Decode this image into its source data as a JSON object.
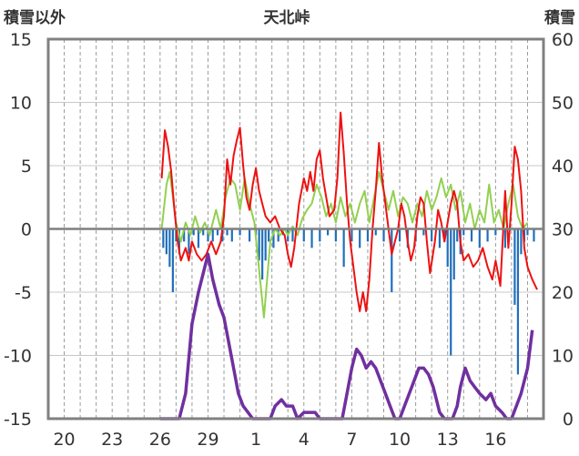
{
  "chart_data": {
    "type": "line",
    "title": "天北峠",
    "ylabel_left": "積雪以外",
    "ylabel_right": "積雪",
    "ylim_left": [
      -15,
      15
    ],
    "ylim_right": [
      0,
      60
    ],
    "yticks_left": [
      "15",
      "10",
      "5",
      "0",
      "-5",
      "-10",
      "-15"
    ],
    "yticks_right": [
      "60",
      "50",
      "40",
      "30",
      "20",
      "10",
      "0"
    ],
    "x_range_days": [
      0,
      31
    ],
    "xticks": [
      {
        "x": 1,
        "label": "20"
      },
      {
        "x": 4,
        "label": "23"
      },
      {
        "x": 7,
        "label": "26"
      },
      {
        "x": 10,
        "label": "29"
      },
      {
        "x": 13,
        "label": "1"
      },
      {
        "x": 16,
        "label": "4"
      },
      {
        "x": 19,
        "label": "7"
      },
      {
        "x": 22,
        "label": "10"
      },
      {
        "x": 25,
        "label": "13"
      },
      {
        "x": 28,
        "label": "16"
      }
    ],
    "series_colors": {
      "red": "#ee1111",
      "green": "#92d050",
      "blue": "#1f6fba",
      "purple": "#7030a0"
    },
    "red_series": [
      [
        7.1,
        4.0
      ],
      [
        7.3,
        7.8
      ],
      [
        7.5,
        6.5
      ],
      [
        7.7,
        4.5
      ],
      [
        7.9,
        1.5
      ],
      [
        8.1,
        -1.0
      ],
      [
        8.3,
        -2.5
      ],
      [
        8.6,
        -1.5
      ],
      [
        8.8,
        -2.5
      ],
      [
        9.0,
        -1.0
      ],
      [
        9.3,
        -2.0
      ],
      [
        9.6,
        -2.5
      ],
      [
        9.9,
        -2.0
      ],
      [
        10.2,
        -1.0
      ],
      [
        10.5,
        -2.0
      ],
      [
        10.8,
        -1.0
      ],
      [
        11.0,
        1.0
      ],
      [
        11.2,
        5.5
      ],
      [
        11.4,
        3.5
      ],
      [
        11.6,
        5.8
      ],
      [
        11.8,
        7.0
      ],
      [
        12.0,
        8.0
      ],
      [
        12.2,
        5.0
      ],
      [
        12.4,
        2.5
      ],
      [
        12.6,
        1.5
      ],
      [
        12.8,
        3.5
      ],
      [
        13.0,
        4.8
      ],
      [
        13.2,
        3.0
      ],
      [
        13.4,
        2.0
      ],
      [
        13.6,
        1.0
      ],
      [
        13.9,
        0.5
      ],
      [
        14.2,
        1.0
      ],
      [
        14.5,
        0.0
      ],
      [
        14.8,
        -0.5
      ],
      [
        15.0,
        -2.0
      ],
      [
        15.2,
        -3.0
      ],
      [
        15.4,
        -1.5
      ],
      [
        15.7,
        2.0
      ],
      [
        16.0,
        4.0
      ],
      [
        16.2,
        3.0
      ],
      [
        16.4,
        4.5
      ],
      [
        16.6,
        3.0
      ],
      [
        16.8,
        5.5
      ],
      [
        17.0,
        6.2
      ],
      [
        17.2,
        4.0
      ],
      [
        17.4,
        2.5
      ],
      [
        17.6,
        1.0
      ],
      [
        17.9,
        1.5
      ],
      [
        18.1,
        4.0
      ],
      [
        18.3,
        9.2
      ],
      [
        18.5,
        6.0
      ],
      [
        18.7,
        2.0
      ],
      [
        18.9,
        -1.0
      ],
      [
        19.1,
        -3.0
      ],
      [
        19.3,
        -5.0
      ],
      [
        19.5,
        -6.5
      ],
      [
        19.7,
        -5.0
      ],
      [
        19.9,
        -6.5
      ],
      [
        20.1,
        -4.0
      ],
      [
        20.3,
        0.0
      ],
      [
        20.5,
        3.0
      ],
      [
        20.7,
        6.8
      ],
      [
        20.9,
        4.0
      ],
      [
        21.1,
        2.0
      ],
      [
        21.3,
        0.0
      ],
      [
        21.5,
        -2.0
      ],
      [
        21.7,
        -1.0
      ],
      [
        21.9,
        0.0
      ],
      [
        22.1,
        2.0
      ],
      [
        22.3,
        1.0
      ],
      [
        22.5,
        -1.0
      ],
      [
        22.7,
        -2.5
      ],
      [
        22.9,
        -1.5
      ],
      [
        23.1,
        1.0
      ],
      [
        23.3,
        2.5
      ],
      [
        23.5,
        2.0
      ],
      [
        23.7,
        -1.0
      ],
      [
        23.9,
        -3.5
      ],
      [
        24.2,
        -1.0
      ],
      [
        24.4,
        1.5
      ],
      [
        24.6,
        0.5
      ],
      [
        24.8,
        -1.0
      ],
      [
        25.0,
        0.5
      ],
      [
        25.2,
        2.0
      ],
      [
        25.4,
        3.0
      ],
      [
        25.6,
        2.0
      ],
      [
        25.8,
        -1.0
      ],
      [
        26.0,
        -2.5
      ],
      [
        26.3,
        -2.0
      ],
      [
        26.6,
        -3.0
      ],
      [
        26.9,
        -2.5
      ],
      [
        27.2,
        -1.5
      ],
      [
        27.5,
        -3.0
      ],
      [
        27.8,
        -4.0
      ],
      [
        28.0,
        -2.5
      ],
      [
        28.3,
        -4.5
      ],
      [
        28.6,
        3.0
      ],
      [
        28.8,
        -1.5
      ],
      [
        29.0,
        2.0
      ],
      [
        29.2,
        6.5
      ],
      [
        29.4,
        5.5
      ],
      [
        29.6,
        3.0
      ],
      [
        29.8,
        -1.5
      ],
      [
        30.0,
        -3.0
      ],
      [
        30.3,
        -4.0
      ],
      [
        30.6,
        -4.8
      ]
    ],
    "green_series": [
      [
        7.1,
        0.0
      ],
      [
        7.4,
        3.5
      ],
      [
        7.6,
        4.5
      ],
      [
        7.8,
        2.5
      ],
      [
        8.0,
        0.5
      ],
      [
        8.3,
        -1.0
      ],
      [
        8.6,
        0.5
      ],
      [
        8.9,
        -0.5
      ],
      [
        9.2,
        1.0
      ],
      [
        9.5,
        -0.3
      ],
      [
        9.8,
        0.5
      ],
      [
        10.1,
        -0.5
      ],
      [
        10.5,
        1.5
      ],
      [
        10.8,
        0.0
      ],
      [
        11.1,
        2.5
      ],
      [
        11.4,
        4.0
      ],
      [
        11.7,
        3.5
      ],
      [
        12.0,
        1.5
      ],
      [
        12.3,
        4.0
      ],
      [
        12.6,
        2.0
      ],
      [
        12.9,
        0.5
      ],
      [
        13.1,
        -2.0
      ],
      [
        13.3,
        -4.5
      ],
      [
        13.5,
        -7.0
      ],
      [
        13.7,
        -4.0
      ],
      [
        13.9,
        -1.0
      ],
      [
        14.2,
        0.0
      ],
      [
        14.5,
        -0.5
      ],
      [
        14.8,
        0.0
      ],
      [
        15.0,
        -0.5
      ],
      [
        15.3,
        0.2
      ],
      [
        15.6,
        -0.5
      ],
      [
        15.9,
        0.8
      ],
      [
        16.2,
        1.5
      ],
      [
        16.5,
        2.0
      ],
      [
        16.8,
        3.5
      ],
      [
        17.1,
        2.5
      ],
      [
        17.4,
        1.0
      ],
      [
        17.7,
        2.0
      ],
      [
        18.0,
        0.5
      ],
      [
        18.3,
        2.5
      ],
      [
        18.6,
        1.0
      ],
      [
        18.9,
        2.0
      ],
      [
        19.2,
        0.5
      ],
      [
        19.5,
        2.0
      ],
      [
        19.8,
        3.0
      ],
      [
        20.1,
        0.5
      ],
      [
        20.4,
        2.5
      ],
      [
        20.7,
        4.5
      ],
      [
        21.0,
        3.0
      ],
      [
        21.3,
        1.5
      ],
      [
        21.6,
        3.0
      ],
      [
        21.9,
        1.0
      ],
      [
        22.2,
        2.5
      ],
      [
        22.5,
        2.0
      ],
      [
        22.8,
        0.5
      ],
      [
        23.1,
        2.0
      ],
      [
        23.4,
        1.0
      ],
      [
        23.7,
        3.0
      ],
      [
        24.0,
        1.5
      ],
      [
        24.3,
        2.5
      ],
      [
        24.6,
        4.0
      ],
      [
        24.9,
        2.5
      ],
      [
        25.2,
        3.5
      ],
      [
        25.5,
        1.5
      ],
      [
        25.8,
        3.0
      ],
      [
        26.1,
        0.5
      ],
      [
        26.4,
        2.0
      ],
      [
        26.7,
        0.0
      ],
      [
        27.0,
        1.5
      ],
      [
        27.3,
        0.5
      ],
      [
        27.6,
        3.5
      ],
      [
        27.9,
        0.5
      ],
      [
        28.2,
        1.5
      ],
      [
        28.5,
        0.0
      ],
      [
        28.8,
        2.0
      ],
      [
        29.1,
        3.5
      ],
      [
        29.4,
        1.0
      ],
      [
        29.7,
        0.0
      ],
      [
        30.0,
        0.5
      ]
    ],
    "blue_series": [
      [
        7.2,
        -1.5
      ],
      [
        7.4,
        -2.0
      ],
      [
        7.6,
        -3.0
      ],
      [
        7.8,
        -5.0
      ],
      [
        8.0,
        -1.0
      ],
      [
        8.2,
        -2.0
      ],
      [
        8.5,
        -1.0
      ],
      [
        8.8,
        -2.0
      ],
      [
        9.1,
        -0.5
      ],
      [
        9.4,
        -1.5
      ],
      [
        9.7,
        -0.5
      ],
      [
        10.0,
        -1.0
      ],
      [
        10.3,
        -1.0
      ],
      [
        10.6,
        -0.5
      ],
      [
        10.9,
        -1.0
      ],
      [
        11.2,
        -0.5
      ],
      [
        11.5,
        -1.0
      ],
      [
        12.0,
        -0.5
      ],
      [
        12.6,
        -1.0
      ],
      [
        13.0,
        -0.5
      ],
      [
        13.2,
        -2.5
      ],
      [
        13.4,
        -4.0
      ],
      [
        13.6,
        -2.5
      ],
      [
        13.8,
        -1.0
      ],
      [
        14.1,
        -1.5
      ],
      [
        14.4,
        -1.0
      ],
      [
        14.7,
        -0.5
      ],
      [
        15.0,
        -1.0
      ],
      [
        15.3,
        -1.0
      ],
      [
        16.0,
        -1.0
      ],
      [
        16.5,
        -1.5
      ],
      [
        17.0,
        -1.0
      ],
      [
        17.5,
        -0.5
      ],
      [
        18.0,
        -1.0
      ],
      [
        18.5,
        -3.0
      ],
      [
        19.0,
        -1.0
      ],
      [
        19.5,
        -1.5
      ],
      [
        20.0,
        -1.0
      ],
      [
        20.5,
        -0.5
      ],
      [
        21.0,
        -1.0
      ],
      [
        21.5,
        -5.0
      ],
      [
        22.0,
        -1.0
      ],
      [
        22.5,
        -1.5
      ],
      [
        23.0,
        -1.0
      ],
      [
        23.5,
        -0.5
      ],
      [
        24.0,
        -1.0
      ],
      [
        24.5,
        -1.5
      ],
      [
        24.8,
        -1.0
      ],
      [
        25.0,
        -3.0
      ],
      [
        25.2,
        -10.0
      ],
      [
        25.4,
        -4.0
      ],
      [
        25.6,
        -1.0
      ],
      [
        25.8,
        -2.0
      ],
      [
        26.0,
        -0.5
      ],
      [
        26.5,
        -1.0
      ],
      [
        27.0,
        -1.5
      ],
      [
        27.5,
        -1.0
      ],
      [
        28.0,
        -0.5
      ],
      [
        28.6,
        -1.5
      ],
      [
        29.2,
        -6.0
      ],
      [
        29.4,
        -11.5
      ],
      [
        29.6,
        -2.0
      ],
      [
        29.8,
        -1.0
      ],
      [
        30.0,
        -0.5
      ],
      [
        30.4,
        -1.0
      ]
    ],
    "purple_series": [
      [
        7.0,
        0
      ],
      [
        7.6,
        0
      ],
      [
        8.2,
        0
      ],
      [
        8.6,
        4
      ],
      [
        9.0,
        15
      ],
      [
        9.4,
        20
      ],
      [
        9.8,
        24
      ],
      [
        10.0,
        26
      ],
      [
        10.3,
        22
      ],
      [
        10.7,
        18
      ],
      [
        11.0,
        16
      ],
      [
        11.3,
        12
      ],
      [
        11.6,
        8
      ],
      [
        11.9,
        4
      ],
      [
        12.2,
        2
      ],
      [
        12.5,
        1
      ],
      [
        12.8,
        0
      ],
      [
        13.0,
        0
      ],
      [
        13.3,
        0
      ],
      [
        13.6,
        0
      ],
      [
        13.9,
        0
      ],
      [
        14.2,
        2
      ],
      [
        14.6,
        3
      ],
      [
        14.9,
        2
      ],
      [
        15.3,
        2
      ],
      [
        15.6,
        0
      ],
      [
        16.0,
        1
      ],
      [
        16.3,
        1
      ],
      [
        16.7,
        1
      ],
      [
        17.0,
        0
      ],
      [
        17.5,
        0
      ],
      [
        18.2,
        0
      ],
      [
        18.4,
        0
      ],
      [
        18.7,
        4
      ],
      [
        19.0,
        8
      ],
      [
        19.3,
        11
      ],
      [
        19.6,
        10
      ],
      [
        19.9,
        8
      ],
      [
        20.2,
        9
      ],
      [
        20.5,
        8
      ],
      [
        20.8,
        6
      ],
      [
        21.1,
        4
      ],
      [
        21.4,
        2
      ],
      [
        21.7,
        0
      ],
      [
        22.0,
        0
      ],
      [
        22.3,
        2
      ],
      [
        22.6,
        4
      ],
      [
        22.9,
        6
      ],
      [
        23.2,
        8
      ],
      [
        23.5,
        8
      ],
      [
        23.8,
        7
      ],
      [
        24.1,
        5
      ],
      [
        24.3,
        3
      ],
      [
        24.5,
        1
      ],
      [
        24.8,
        0
      ],
      [
        25.0,
        0
      ],
      [
        25.3,
        0
      ],
      [
        25.6,
        2
      ],
      [
        25.8,
        5
      ],
      [
        26.1,
        8
      ],
      [
        26.4,
        6
      ],
      [
        26.7,
        5
      ],
      [
        27.0,
        4
      ],
      [
        27.4,
        3
      ],
      [
        27.7,
        4
      ],
      [
        28.0,
        2
      ],
      [
        28.4,
        1
      ],
      [
        28.7,
        0
      ],
      [
        29.0,
        0
      ],
      [
        29.3,
        2
      ],
      [
        29.6,
        4
      ],
      [
        30.0,
        8
      ],
      [
        30.3,
        14
      ]
    ]
  }
}
